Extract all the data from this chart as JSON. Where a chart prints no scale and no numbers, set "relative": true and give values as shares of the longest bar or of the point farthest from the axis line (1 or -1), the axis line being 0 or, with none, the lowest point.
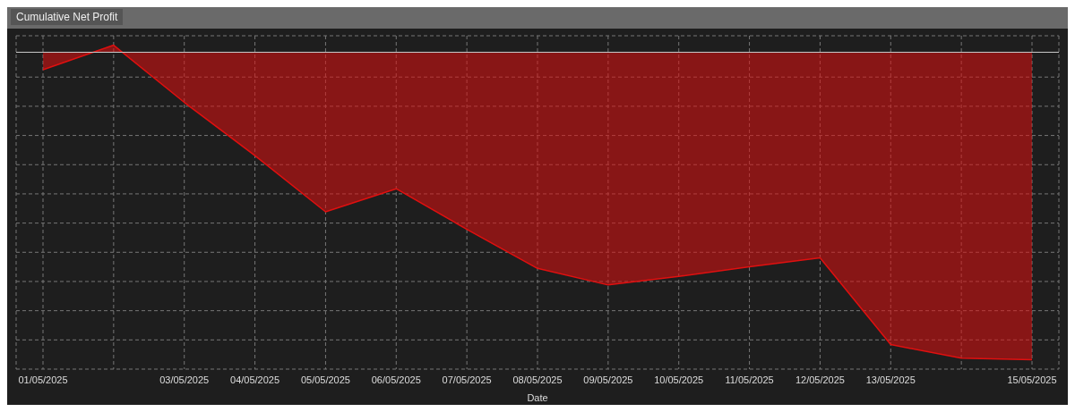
{
  "chart_data": {
    "type": "area",
    "title": "Cumulative Net Profit",
    "xlabel": "Date",
    "relative": true,
    "grid": true,
    "line_style": "solid",
    "categories": [
      "01/05/2025",
      null,
      "03/05/2025",
      "04/05/2025",
      "05/05/2025",
      "06/05/2025",
      "07/05/2025",
      "08/05/2025",
      "09/05/2025",
      "10/05/2025",
      "11/05/2025",
      "12/05/2025",
      "13/05/2025",
      null,
      "15/05/2025"
    ],
    "series": [
      {
        "color": "#e01010",
        "values": [
          -0.057,
          0.023,
          -0.163,
          -0.336,
          -0.519,
          -0.444,
          -0.576,
          -0.703,
          -0.757,
          -0.729,
          -0.698,
          -0.669,
          -0.951,
          -0.995,
          -1
        ]
      }
    ]
  }
}
